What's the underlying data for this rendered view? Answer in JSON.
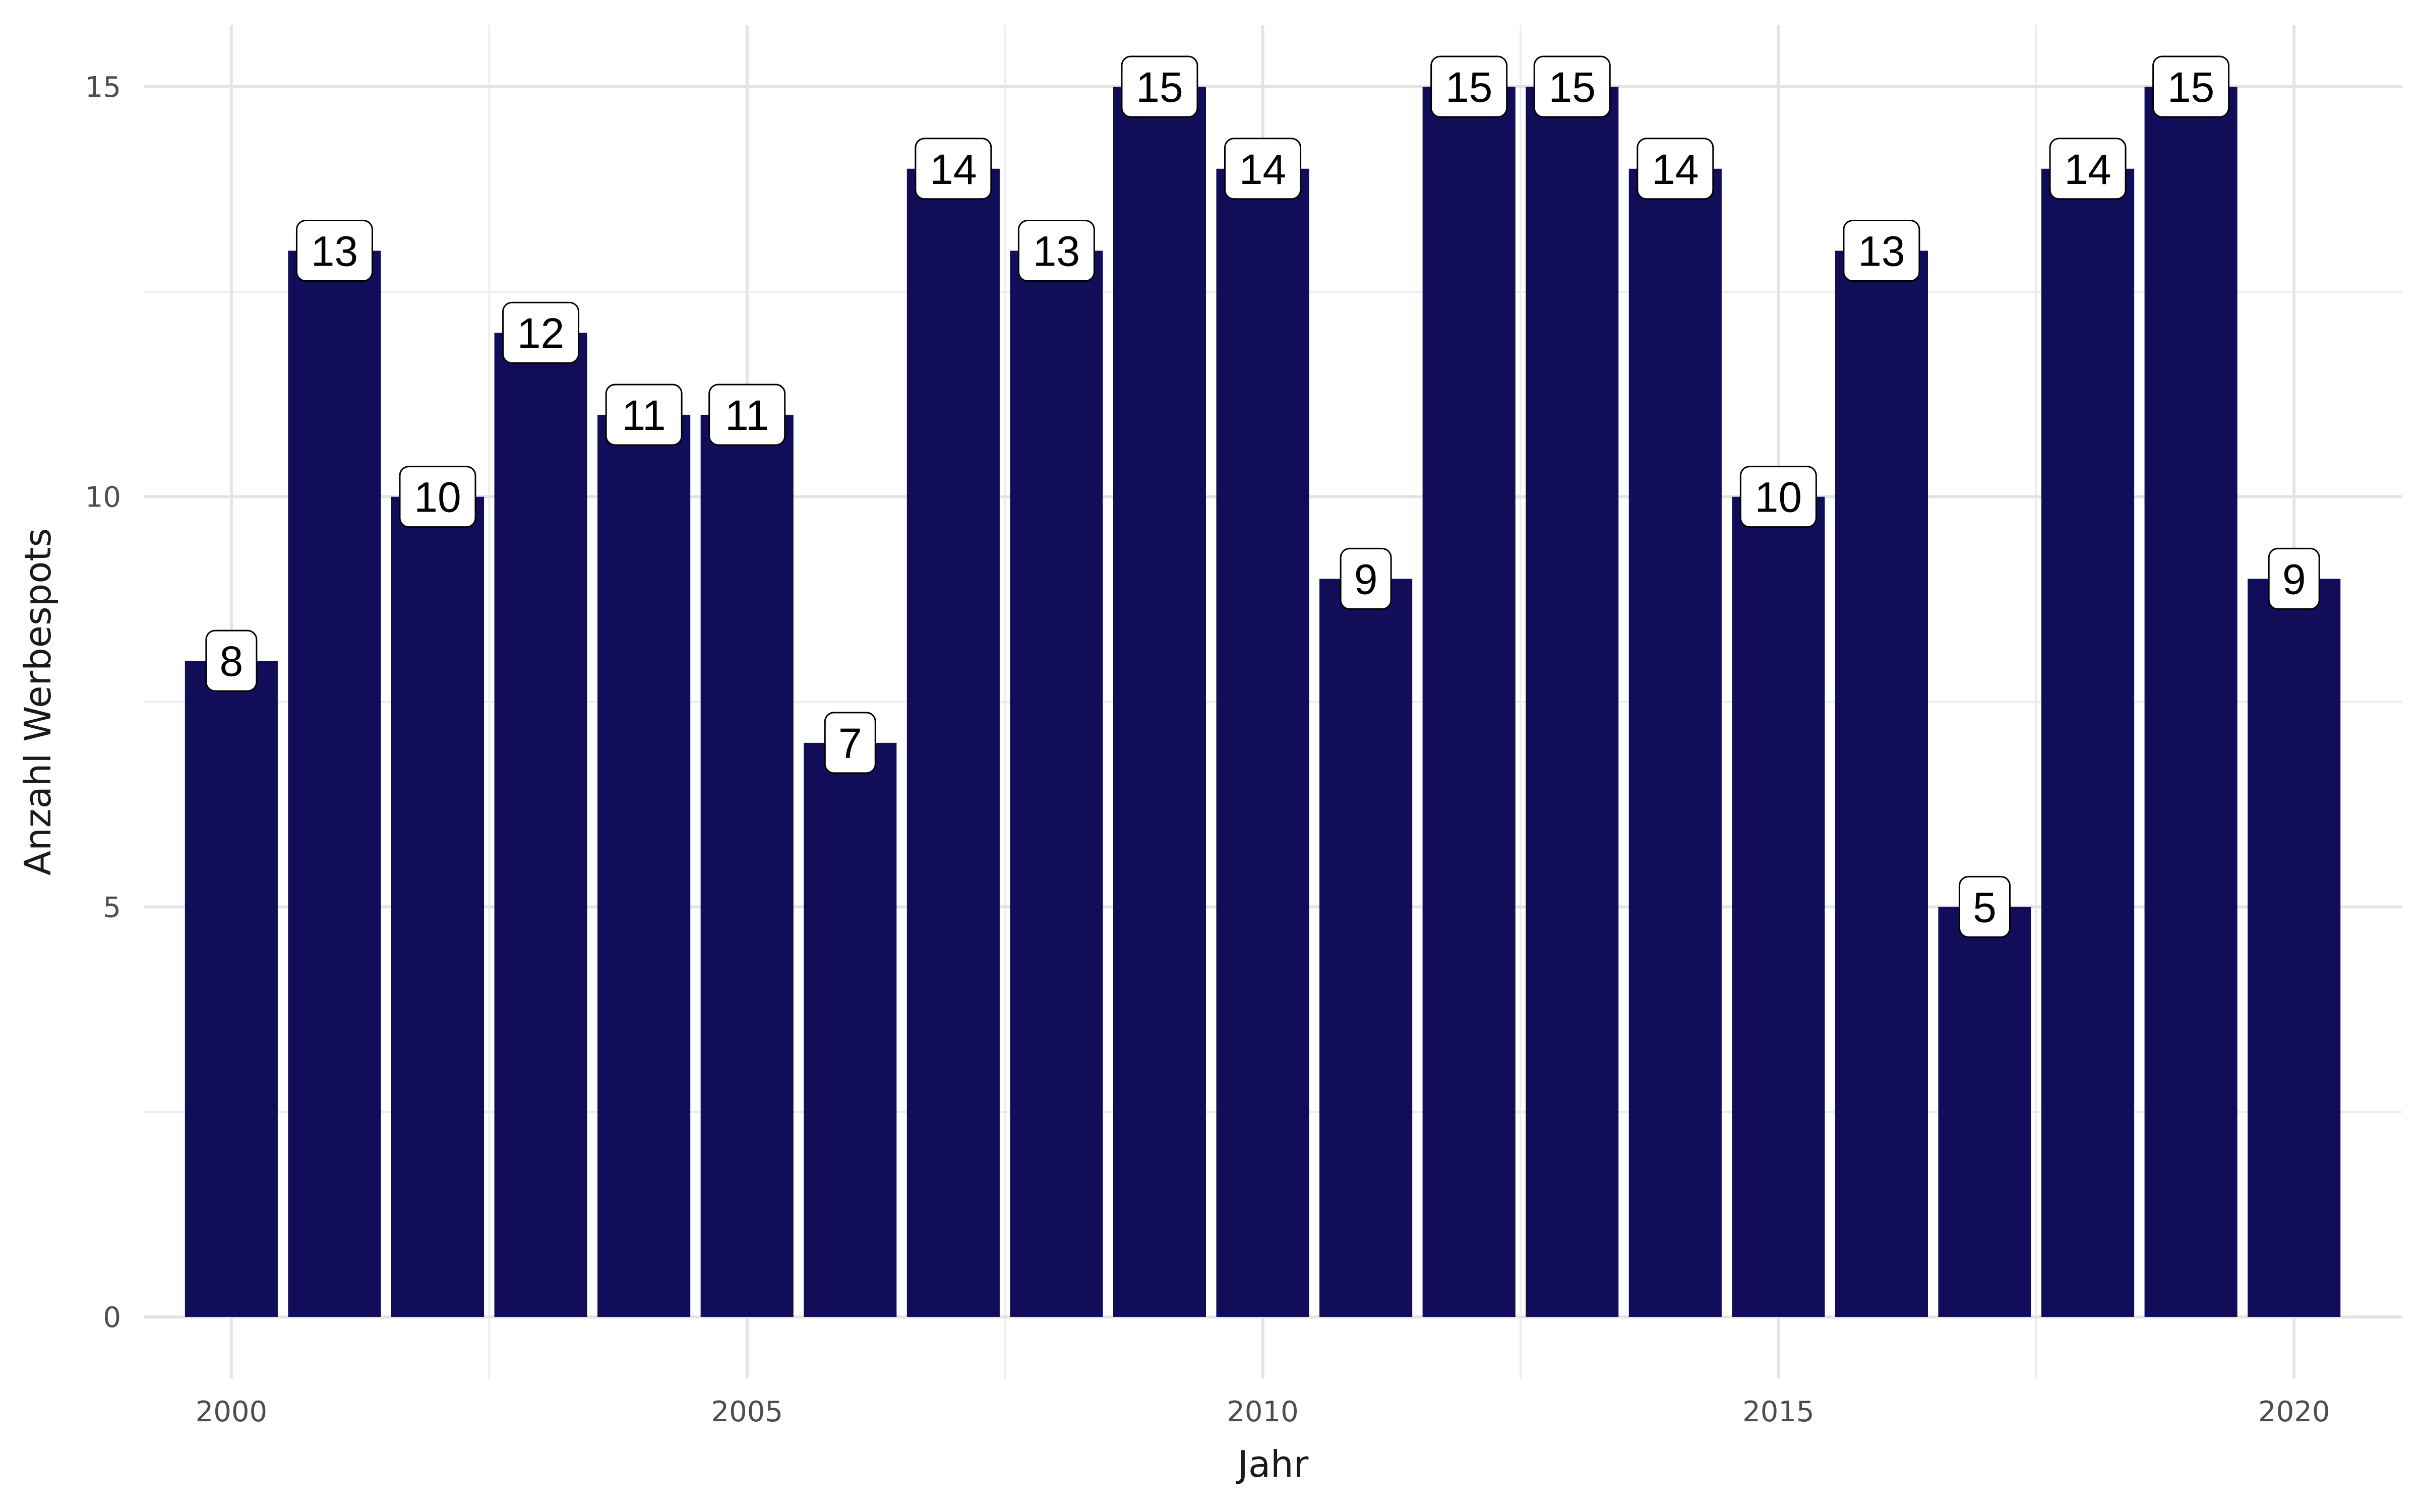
{
  "chart_data": {
    "type": "bar",
    "title": "",
    "xlabel": "Jahr",
    "ylabel": "Anzahl Werbespots",
    "x": [
      2000,
      2001,
      2002,
      2003,
      2004,
      2005,
      2006,
      2007,
      2008,
      2009,
      2010,
      2011,
      2012,
      2013,
      2014,
      2015,
      2016,
      2017,
      2018,
      2019,
      2020
    ],
    "values": [
      8,
      13,
      10,
      12,
      11,
      11,
      7,
      14,
      13,
      15,
      14,
      9,
      15,
      15,
      14,
      10,
      13,
      5,
      14,
      15,
      9
    ],
    "x_ticks": [
      "2000",
      "2005",
      "2010",
      "2015",
      "2020"
    ],
    "x_tick_values": [
      2000,
      2005,
      2010,
      2015,
      2020
    ],
    "y_ticks": [
      "0",
      "5",
      "10",
      "15"
    ],
    "y_tick_values": [
      0,
      5,
      10,
      15
    ],
    "xlim": [
      1999.15,
      2021.05
    ],
    "ylim": [
      -0.75,
      15.75
    ],
    "data_labels": true,
    "grid": true,
    "legend": "none",
    "bar_color": "#120d59"
  }
}
